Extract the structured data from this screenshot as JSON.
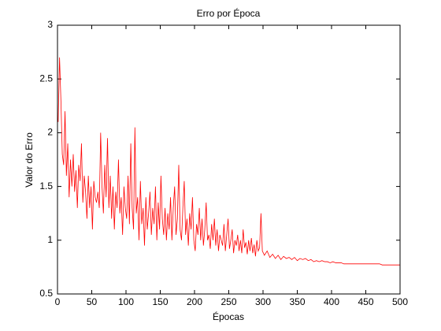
{
  "chart_data": {
    "type": "line",
    "title": "Erro por Época",
    "xlabel": "Épocas",
    "ylabel": "Valor do Erro",
    "xlim": [
      0,
      500
    ],
    "xticks": [
      0,
      50,
      100,
      150,
      200,
      250,
      300,
      350,
      400,
      450,
      500
    ],
    "ylim": [
      0.5,
      3
    ],
    "yticks": [
      0.5,
      1,
      1.5,
      2,
      2.5,
      3
    ],
    "grid": false,
    "color": "#ff0000",
    "x": [
      1,
      3,
      5,
      7,
      9,
      11,
      13,
      15,
      17,
      19,
      21,
      23,
      25,
      27,
      29,
      31,
      33,
      35,
      37,
      39,
      41,
      43,
      45,
      47,
      49,
      51,
      53,
      55,
      57,
      59,
      61,
      63,
      65,
      67,
      69,
      71,
      73,
      75,
      77,
      79,
      81,
      83,
      85,
      87,
      89,
      91,
      93,
      95,
      97,
      99,
      101,
      103,
      105,
      107,
      109,
      111,
      113,
      115,
      117,
      119,
      121,
      123,
      125,
      127,
      129,
      131,
      133,
      135,
      137,
      139,
      141,
      143,
      145,
      147,
      149,
      151,
      153,
      155,
      157,
      159,
      161,
      163,
      165,
      167,
      169,
      171,
      173,
      175,
      177,
      179,
      181,
      183,
      185,
      187,
      189,
      191,
      193,
      195,
      197,
      199,
      201,
      203,
      205,
      207,
      209,
      211,
      213,
      215,
      217,
      219,
      221,
      223,
      225,
      227,
      229,
      231,
      233,
      235,
      237,
      239,
      241,
      243,
      245,
      247,
      249,
      251,
      253,
      255,
      257,
      259,
      261,
      263,
      265,
      267,
      269,
      271,
      273,
      275,
      277,
      279,
      281,
      283,
      285,
      287,
      289,
      291,
      293,
      295,
      297,
      299,
      302,
      306,
      310,
      314,
      318,
      322,
      326,
      330,
      334,
      338,
      342,
      346,
      350,
      354,
      358,
      362,
      366,
      370,
      374,
      378,
      382,
      386,
      390,
      394,
      398,
      402,
      406,
      410,
      414,
      418,
      422,
      426,
      430,
      434,
      438,
      442,
      446,
      450,
      454,
      458,
      462,
      466,
      470,
      474,
      478,
      482,
      486,
      490,
      494,
      498,
      500
    ],
    "series": [
      {
        "color": "#ff0000",
        "values": [
          2.1,
          2.7,
          2.3,
          1.8,
          1.7,
          2.2,
          1.6,
          1.9,
          1.4,
          1.75,
          1.5,
          1.8,
          1.45,
          1.65,
          1.3,
          1.7,
          1.55,
          1.9,
          1.35,
          1.6,
          1.45,
          1.2,
          1.6,
          1.3,
          1.5,
          1.1,
          1.55,
          1.4,
          1.35,
          1.45,
          1.3,
          2.0,
          1.5,
          1.25,
          1.7,
          1.4,
          1.95,
          1.3,
          1.6,
          1.2,
          1.5,
          1.1,
          1.45,
          1.3,
          1.75,
          1.25,
          1.4,
          1.05,
          1.5,
          1.3,
          1.2,
          1.6,
          1.15,
          1.9,
          1.3,
          1.1,
          2.05,
          1.25,
          1.4,
          1.0,
          1.55,
          1.15,
          1.3,
          0.95,
          1.4,
          1.1,
          1.25,
          1.45,
          1.05,
          1.3,
          1.15,
          1.5,
          1.0,
          1.35,
          1.1,
          1.6,
          1.2,
          1.05,
          1.3,
          1.0,
          1.25,
          1.1,
          1.4,
          1.0,
          1.3,
          1.5,
          1.05,
          1.2,
          1.7,
          1.1,
          1.0,
          1.3,
          1.55,
          1.05,
          1.2,
          0.95,
          1.25,
          1.1,
          1.4,
          1.0,
          0.9,
          1.15,
          1.05,
          1.3,
          1.0,
          1.2,
          0.95,
          1.1,
          1.35,
          1.0,
          1.05,
          0.92,
          1.15,
          1.0,
          1.2,
          0.95,
          1.1,
          0.9,
          1.05,
          1.0,
          0.95,
          1.15,
          0.9,
          1.05,
          1.2,
          0.92,
          1.0,
          1.1,
          0.88,
          1.0,
          0.95,
          1.05,
          0.9,
          1.0,
          0.88,
          1.1,
          0.93,
          0.98,
          0.87,
          1.0,
          0.9,
          1.02,
          0.88,
          0.96,
          0.85,
          1.0,
          0.9,
          0.93,
          1.25,
          0.9,
          0.86,
          0.9,
          0.84,
          0.87,
          0.83,
          0.86,
          0.82,
          0.85,
          0.83,
          0.84,
          0.82,
          0.84,
          0.81,
          0.83,
          0.82,
          0.83,
          0.81,
          0.82,
          0.8,
          0.81,
          0.8,
          0.81,
          0.8,
          0.8,
          0.79,
          0.8,
          0.79,
          0.79,
          0.79,
          0.78,
          0.78,
          0.78,
          0.78,
          0.78,
          0.78,
          0.78,
          0.78,
          0.78,
          0.78,
          0.78,
          0.78,
          0.78,
          0.78,
          0.77,
          0.77,
          0.77,
          0.77,
          0.77,
          0.77,
          0.77,
          0.77
        ]
      }
    ]
  }
}
